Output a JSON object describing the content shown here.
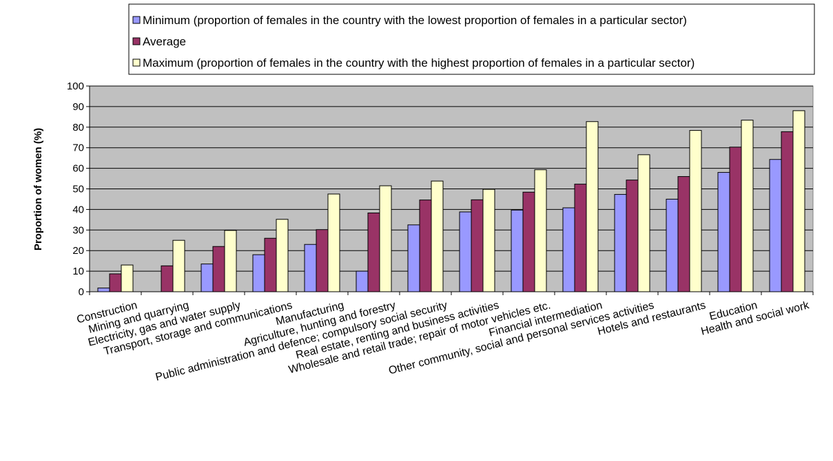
{
  "chart_data": {
    "type": "bar",
    "ylabel": "Proportion of women (%)",
    "ylim": [
      0,
      100
    ],
    "yticks": [
      0,
      10,
      20,
      30,
      40,
      50,
      60,
      70,
      80,
      90,
      100
    ],
    "grid": true,
    "legend_position": "top",
    "plot_background": "#c0c0c0",
    "categories": [
      "Construction",
      "Mining and quarrying",
      "Electricity, gas and water supply",
      "Transport, storage and communications",
      "Manufacturing",
      "Agriculture, hunting and forestry",
      "Public administration and defence; compulsory social security",
      "Real estate, renting and business activities",
      "Wholesale and retail trade; repair of motor vehicles etc.",
      "Financial intermediation",
      "Other community, social and personal services activities",
      "Hotels and restaurants",
      "Education",
      "Health and social work"
    ],
    "series": [
      {
        "name": "Minimum (proportion of females in the country with the lowest proportion of females in a particular sector)",
        "color": "#9999ff",
        "values": [
          1.8,
          0,
          13.5,
          18,
          23,
          10,
          32.5,
          38.8,
          39.7,
          40.8,
          47.3,
          45,
          58,
          64.3
        ]
      },
      {
        "name": "Average",
        "color": "#993366",
        "values": [
          8.7,
          12.6,
          22,
          26,
          30.2,
          38.3,
          44.6,
          44.7,
          48.4,
          52.3,
          54.3,
          56,
          70.3,
          77.8
        ]
      },
      {
        "name": "Maximum (proportion of females in the country with the highest proportion of females in a particular sector)",
        "color": "#ffffcc",
        "values": [
          13,
          25,
          29.8,
          35.2,
          47.5,
          51.5,
          53.8,
          49.8,
          59.3,
          82.7,
          66.6,
          78.4,
          83.4,
          88
        ]
      }
    ]
  }
}
